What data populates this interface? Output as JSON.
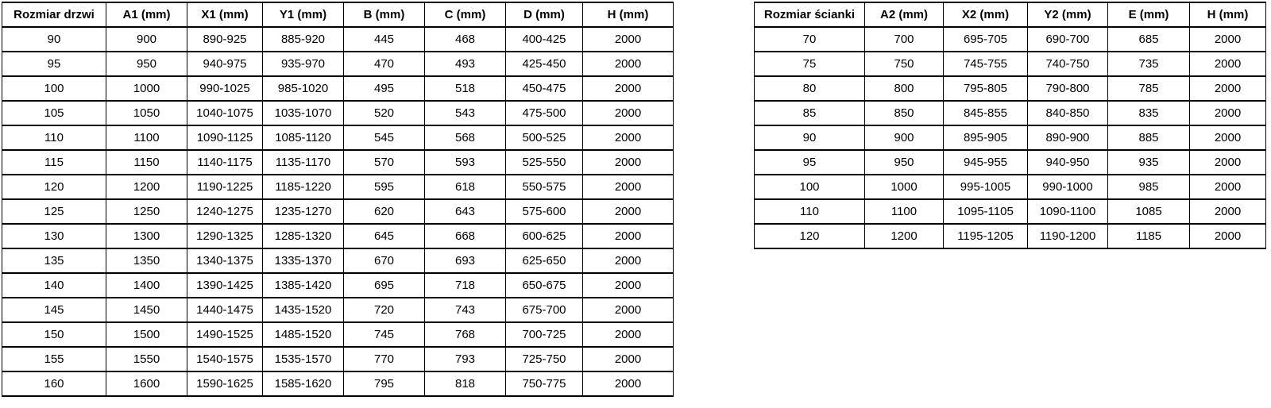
{
  "tables": [
    {
      "name": "door-size-table",
      "headers": [
        "Rozmiar drzwi",
        "A1 (mm)",
        "X1 (mm)",
        "Y1 (mm)",
        "B (mm)",
        "C (mm)",
        "D (mm)",
        "H (mm)"
      ],
      "rows": [
        [
          "90",
          "900",
          "890-925",
          "885-920",
          "445",
          "468",
          "400-425",
          "2000"
        ],
        [
          "95",
          "950",
          "940-975",
          "935-970",
          "470",
          "493",
          "425-450",
          "2000"
        ],
        [
          "100",
          "1000",
          "990-1025",
          "985-1020",
          "495",
          "518",
          "450-475",
          "2000"
        ],
        [
          "105",
          "1050",
          "1040-1075",
          "1035-1070",
          "520",
          "543",
          "475-500",
          "2000"
        ],
        [
          "110",
          "1100",
          "1090-1125",
          "1085-1120",
          "545",
          "568",
          "500-525",
          "2000"
        ],
        [
          "115",
          "1150",
          "1140-1175",
          "1135-1170",
          "570",
          "593",
          "525-550",
          "2000"
        ],
        [
          "120",
          "1200",
          "1190-1225",
          "1185-1220",
          "595",
          "618",
          "550-575",
          "2000"
        ],
        [
          "125",
          "1250",
          "1240-1275",
          "1235-1270",
          "620",
          "643",
          "575-600",
          "2000"
        ],
        [
          "130",
          "1300",
          "1290-1325",
          "1285-1320",
          "645",
          "668",
          "600-625",
          "2000"
        ],
        [
          "135",
          "1350",
          "1340-1375",
          "1335-1370",
          "670",
          "693",
          "625-650",
          "2000"
        ],
        [
          "140",
          "1400",
          "1390-1425",
          "1385-1420",
          "695",
          "718",
          "650-675",
          "2000"
        ],
        [
          "145",
          "1450",
          "1440-1475",
          "1435-1520",
          "720",
          "743",
          "675-700",
          "2000"
        ],
        [
          "150",
          "1500",
          "1490-1525",
          "1485-1520",
          "745",
          "768",
          "700-725",
          "2000"
        ],
        [
          "155",
          "1550",
          "1540-1575",
          "1535-1570",
          "770",
          "793",
          "725-750",
          "2000"
        ],
        [
          "160",
          "1600",
          "1590-1625",
          "1585-1620",
          "795",
          "818",
          "750-775",
          "2000"
        ]
      ]
    },
    {
      "name": "wall-size-table",
      "headers": [
        "Rozmiar ścianki",
        "A2 (mm)",
        "X2 (mm)",
        "Y2 (mm)",
        "E (mm)",
        "H (mm)"
      ],
      "rows": [
        [
          "70",
          "700",
          "695-705",
          "690-700",
          "685",
          "2000"
        ],
        [
          "75",
          "750",
          "745-755",
          "740-750",
          "735",
          "2000"
        ],
        [
          "80",
          "800",
          "795-805",
          "790-800",
          "785",
          "2000"
        ],
        [
          "85",
          "850",
          "845-855",
          "840-850",
          "835",
          "2000"
        ],
        [
          "90",
          "900",
          "895-905",
          "890-900",
          "885",
          "2000"
        ],
        [
          "95",
          "950",
          "945-955",
          "940-950",
          "935",
          "2000"
        ],
        [
          "100",
          "1000",
          "995-1005",
          "990-1000",
          "985",
          "2000"
        ],
        [
          "110",
          "1100",
          "1095-1105",
          "1090-1100",
          "1085",
          "2000"
        ],
        [
          "120",
          "1200",
          "1195-1205",
          "1190-1200",
          "1185",
          "2000"
        ]
      ]
    }
  ]
}
